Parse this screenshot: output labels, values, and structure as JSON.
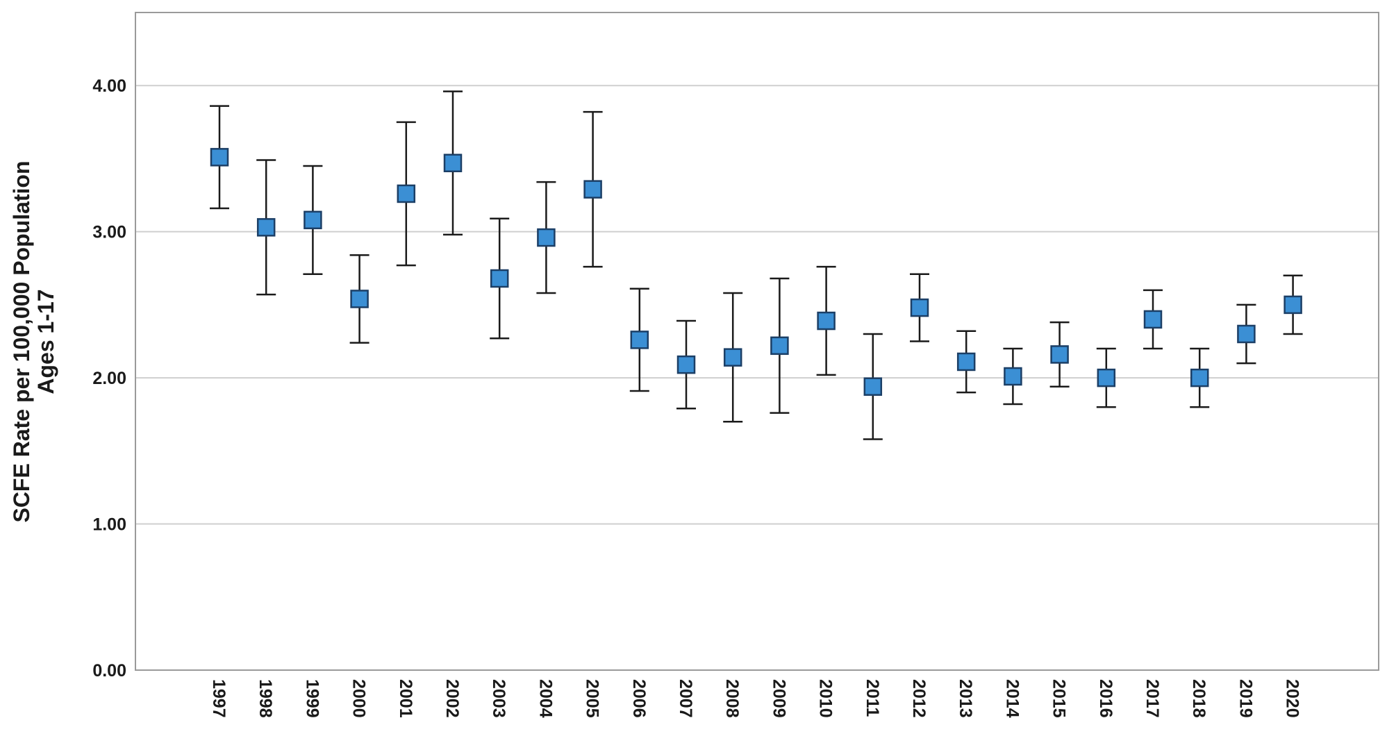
{
  "chart_data": {
    "type": "scatter",
    "title": "",
    "xlabel": "",
    "ylabel_lines": [
      "SCFE Rate per 100,000 Population",
      "Ages 1-17"
    ],
    "ylim": [
      0,
      4.5
    ],
    "yticks": [
      0,
      1,
      2,
      3,
      4
    ],
    "ytick_labels": [
      "0.00",
      "1.00",
      "2.00",
      "3.00",
      "4.00"
    ],
    "grid": true,
    "categories": [
      "1997",
      "1998",
      "1999",
      "2000",
      "2001",
      "2002",
      "2003",
      "2004",
      "2005",
      "2006",
      "2007",
      "2008",
      "2009",
      "2010",
      "2011",
      "2012",
      "2013",
      "2014",
      "2015",
      "2016",
      "2017",
      "2018",
      "2019",
      "2020"
    ],
    "values": [
      3.51,
      3.03,
      3.08,
      2.54,
      3.26,
      3.47,
      2.68,
      2.96,
      3.29,
      2.26,
      2.09,
      2.14,
      2.22,
      2.39,
      1.94,
      2.48,
      2.11,
      2.01,
      2.16,
      2.0,
      2.4,
      2.0,
      2.3,
      2.5
    ],
    "error_low": [
      3.16,
      2.57,
      2.71,
      2.24,
      2.77,
      2.98,
      2.27,
      2.58,
      2.76,
      1.91,
      1.79,
      1.7,
      1.76,
      2.02,
      1.58,
      2.25,
      1.9,
      1.82,
      1.94,
      1.8,
      2.2,
      1.8,
      2.1,
      2.3
    ],
    "error_high": [
      3.86,
      3.49,
      3.45,
      2.84,
      3.75,
      3.96,
      3.09,
      3.34,
      3.82,
      2.61,
      2.39,
      2.58,
      2.68,
      2.76,
      2.3,
      2.71,
      2.32,
      2.2,
      2.38,
      2.2,
      2.6,
      2.2,
      2.5,
      2.7
    ],
    "marker_color": "#3b8fd4",
    "marker_edge_color": "#1c3f66",
    "errorbar_color": "#1a1a1a",
    "gridline_color": "#cfcfcf"
  }
}
